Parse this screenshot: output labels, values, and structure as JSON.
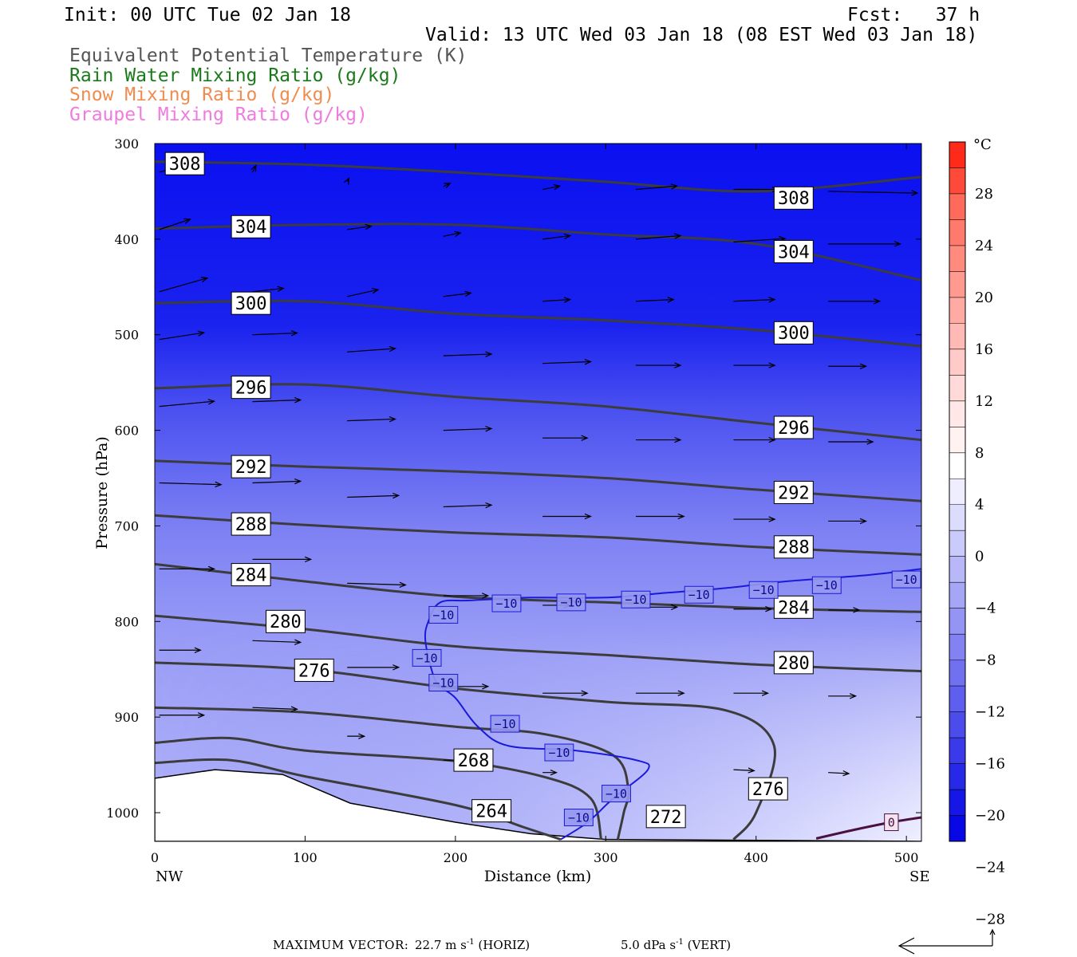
{
  "header": {
    "init": "Init: 00 UTC Tue 02 Jan 18",
    "fcst": "Fcst:   37 h",
    "valid": "Valid: 13 UTC Wed 03 Jan 18 (08 EST Wed 03 Jan 18)"
  },
  "legend_titles": [
    {
      "text": "Equivalent Potential Temperature (K)",
      "color": "#555555"
    },
    {
      "text": "Rain Water Mixing Ratio (g/kg)",
      "color": "#1a7a1a"
    },
    {
      "text": "Snow Mixing Ratio (g/kg)",
      "color": "#f08c50"
    },
    {
      "text": "Graupel Mixing Ratio (g/kg)",
      "color": "#f07ae0"
    }
  ],
  "footer": {
    "max_vector_label": "MAXIMUM VECTOR:",
    "horiz": "22.7 m s",
    "horiz_unit": "(HORIZ)",
    "vert": "5.0 dPa s",
    "vert_unit": "(VERT)",
    "exponent": "-1"
  },
  "chart_data": {
    "type": "cross-section",
    "xlabel": "Distance (km)",
    "ylabel": "Pressure (hPa)",
    "xlim": [
      0,
      510
    ],
    "ylim": [
      300,
      1030
    ],
    "x_ticks": [
      0,
      100,
      200,
      300,
      400,
      500
    ],
    "y_ticks": [
      300,
      400,
      500,
      600,
      700,
      800,
      900,
      1000
    ],
    "x_end_labels": {
      "left": "NW",
      "right": "SE"
    },
    "colorbar": {
      "unit": "°C",
      "tick_labels": [
        "28",
        "24",
        "20",
        "16",
        "12",
        "8",
        "4",
        "0",
        "−4",
        "−8",
        "−12",
        "−16",
        "−20",
        "−24",
        "−28"
      ],
      "colors_top_to_bottom": [
        "#ff2a1a",
        "#ff4a3a",
        "#ff6a5a",
        "#ff7a6c",
        "#ff8a7e",
        "#ff9a90",
        "#ffaaa3",
        "#ffbab5",
        "#ffcac7",
        "#ffdad8",
        "#ffe8e7",
        "#fff2f1",
        "#ffffff",
        "#eeeeff",
        "#dcdcfd",
        "#cacafb",
        "#b8b8f9",
        "#a6a6f7",
        "#9494f5",
        "#8282f3",
        "#7070f1",
        "#5e5eef",
        "#4c4ced",
        "#3a3aeb",
        "#2828e9",
        "#1616e7",
        "#0808e5"
      ],
      "bg_top_color": "#0a10f0",
      "bg_mid_color": "#7d80f4",
      "bg_low_color": "#c8c9fb"
    },
    "theta_e_contours": [
      {
        "value": 308,
        "points": [
          [
            0,
            319
          ],
          [
            100,
            322
          ],
          [
            200,
            330
          ],
          [
            300,
            340
          ],
          [
            400,
            350
          ],
          [
            510,
            335
          ]
        ]
      },
      {
        "value": 304,
        "points": [
          [
            0,
            389
          ],
          [
            100,
            385
          ],
          [
            200,
            385
          ],
          [
            300,
            395
          ],
          [
            400,
            405
          ],
          [
            510,
            443
          ]
        ]
      },
      {
        "value": 300,
        "points": [
          [
            0,
            467
          ],
          [
            100,
            465
          ],
          [
            200,
            478
          ],
          [
            300,
            485
          ],
          [
            400,
            495
          ],
          [
            510,
            512
          ]
        ]
      },
      {
        "value": 296,
        "points": [
          [
            0,
            556
          ],
          [
            100,
            552
          ],
          [
            200,
            565
          ],
          [
            300,
            575
          ],
          [
            400,
            592
          ],
          [
            510,
            610
          ]
        ]
      },
      {
        "value": 292,
        "points": [
          [
            0,
            632
          ],
          [
            100,
            638
          ],
          [
            200,
            643
          ],
          [
            300,
            650
          ],
          [
            400,
            662
          ],
          [
            510,
            674
          ]
        ]
      },
      {
        "value": 288,
        "points": [
          [
            0,
            689
          ],
          [
            100,
            699
          ],
          [
            200,
            707
          ],
          [
            300,
            712
          ],
          [
            400,
            722
          ],
          [
            510,
            730
          ]
        ]
      },
      {
        "value": 284,
        "points": [
          [
            0,
            740
          ],
          [
            100,
            758
          ],
          [
            200,
            774
          ],
          [
            300,
            780
          ],
          [
            400,
            786
          ],
          [
            510,
            790
          ]
        ]
      },
      {
        "value": 280,
        "points": [
          [
            0,
            794
          ],
          [
            100,
            808
          ],
          [
            200,
            826
          ],
          [
            300,
            835
          ],
          [
            400,
            845
          ],
          [
            510,
            852
          ]
        ]
      },
      {
        "value": 276,
        "points": [
          [
            0,
            843
          ],
          [
            100,
            850
          ],
          [
            200,
            870
          ],
          [
            300,
            884
          ],
          [
            380,
            893
          ],
          [
            412,
            930
          ],
          [
            400,
            1000
          ],
          [
            385,
            1028
          ]
        ]
      },
      {
        "value": 272,
        "points": [
          [
            0,
            890
          ],
          [
            100,
            895
          ],
          [
            200,
            910
          ],
          [
            260,
            918
          ],
          [
            305,
            940
          ],
          [
            315,
            975
          ],
          [
            312,
            1000
          ],
          [
            308,
            1028
          ]
        ]
      },
      {
        "value": 268,
        "points": [
          [
            0,
            927
          ],
          [
            50,
            922
          ],
          [
            100,
            935
          ],
          [
            200,
            946
          ],
          [
            260,
            963
          ],
          [
            290,
            985
          ],
          [
            297,
            1028
          ]
        ]
      },
      {
        "value": 264,
        "points": [
          [
            0,
            948
          ],
          [
            50,
            945
          ],
          [
            100,
            962
          ],
          [
            200,
            992
          ],
          [
            245,
            1015
          ],
          [
            270,
            1028
          ]
        ]
      }
    ],
    "theta_e_labels": [
      {
        "value": 308,
        "x": 20,
        "p": 321
      },
      {
        "value": 308,
        "x": 425,
        "p": 357
      },
      {
        "value": 304,
        "x": 64,
        "p": 387
      },
      {
        "value": 304,
        "x": 425,
        "p": 413
      },
      {
        "value": 300,
        "x": 64,
        "p": 467
      },
      {
        "value": 300,
        "x": 425,
        "p": 498
      },
      {
        "value": 296,
        "x": 64,
        "p": 555
      },
      {
        "value": 296,
        "x": 425,
        "p": 597
      },
      {
        "value": 292,
        "x": 64,
        "p": 638
      },
      {
        "value": 292,
        "x": 425,
        "p": 665
      },
      {
        "value": 288,
        "x": 64,
        "p": 698
      },
      {
        "value": 288,
        "x": 425,
        "p": 722
      },
      {
        "value": 284,
        "x": 64,
        "p": 751
      },
      {
        "value": 284,
        "x": 425,
        "p": 785
      },
      {
        "value": 280,
        "x": 87,
        "p": 800
      },
      {
        "value": 280,
        "x": 425,
        "p": 843
      },
      {
        "value": 276,
        "x": 106,
        "p": 851
      },
      {
        "value": 276,
        "x": 408,
        "p": 975
      },
      {
        "value": 272,
        "x": 340,
        "p": 1004
      },
      {
        "value": 268,
        "x": 212,
        "p": 945
      },
      {
        "value": 264,
        "x": 224,
        "p": 998
      }
    ],
    "temp_isotherm_minus10": {
      "value": "-10",
      "points": [
        [
          270,
          1028
        ],
        [
          288,
          1010
        ],
        [
          305,
          985
        ],
        [
          328,
          955
        ],
        [
          320,
          945
        ],
        [
          280,
          935
        ],
        [
          235,
          930
        ],
        [
          215,
          910
        ],
        [
          200,
          880
        ],
        [
          190,
          868
        ],
        [
          185,
          855
        ],
        [
          180,
          820
        ],
        [
          182,
          800
        ],
        [
          190,
          780
        ],
        [
          210,
          778
        ],
        [
          250,
          775
        ],
        [
          300,
          775
        ],
        [
          340,
          770
        ],
        [
          380,
          765
        ],
        [
          420,
          758
        ],
        [
          470,
          752
        ],
        [
          510,
          745
        ]
      ]
    },
    "temp_labels_minus10": [
      {
        "x": 192,
        "p": 793
      },
      {
        "x": 234,
        "p": 781
      },
      {
        "x": 277,
        "p": 780
      },
      {
        "x": 320,
        "p": 777
      },
      {
        "x": 362,
        "p": 772
      },
      {
        "x": 405,
        "p": 767
      },
      {
        "x": 447,
        "p": 762
      },
      {
        "x": 500,
        "p": 756
      },
      {
        "x": 181,
        "p": 838
      },
      {
        "x": 192,
        "p": 864
      },
      {
        "x": 233,
        "p": 907
      },
      {
        "x": 269,
        "p": 937
      },
      {
        "x": 307,
        "p": 980
      },
      {
        "x": 282,
        "p": 1005
      }
    ],
    "temp_isotherm_zero": {
      "value": "0",
      "points": [
        [
          440,
          1027
        ],
        [
          465,
          1018
        ],
        [
          490,
          1010
        ],
        [
          510,
          1005
        ]
      ],
      "label": {
        "x": 490,
        "p": 1010
      }
    },
    "terrain": [
      [
        0,
        964
      ],
      [
        40,
        955
      ],
      [
        85,
        960
      ],
      [
        130,
        990
      ],
      [
        200,
        1010
      ],
      [
        250,
        1022
      ],
      [
        300,
        1028
      ],
      [
        510,
        1030
      ]
    ],
    "wind_vectors": [
      {
        "x": 3,
        "p": 330,
        "u": 10,
        "w": 3
      },
      {
        "x": 65,
        "p": 330,
        "u": 1,
        "w": 2
      },
      {
        "x": 128,
        "p": 340,
        "u": 0.5,
        "w": 1
      },
      {
        "x": 192,
        "p": 345,
        "u": 2,
        "w": 1
      },
      {
        "x": 258,
        "p": 348,
        "u": 5,
        "w": 1
      },
      {
        "x": 320,
        "p": 348,
        "u": 12,
        "w": 1
      },
      {
        "x": 385,
        "p": 348,
        "u": 13,
        "w": 0
      },
      {
        "x": 448,
        "p": 350,
        "u": 26,
        "w": -0.5
      },
      {
        "x": 3,
        "p": 390,
        "u": 9,
        "w": 3
      },
      {
        "x": 128,
        "p": 390,
        "u": 7,
        "w": 1
      },
      {
        "x": 192,
        "p": 397,
        "u": 5,
        "w": 1
      },
      {
        "x": 258,
        "p": 400,
        "u": 8,
        "w": 1
      },
      {
        "x": 320,
        "p": 400,
        "u": 13,
        "w": 1
      },
      {
        "x": 385,
        "p": 403,
        "u": 15,
        "w": 1
      },
      {
        "x": 448,
        "p": 405,
        "u": 21,
        "w": 0
      },
      {
        "x": 3,
        "p": 455,
        "u": 14,
        "w": 4
      },
      {
        "x": 65,
        "p": 455,
        "u": 9,
        "w": 1
      },
      {
        "x": 128,
        "p": 460,
        "u": 9,
        "w": 2
      },
      {
        "x": 192,
        "p": 460,
        "u": 8,
        "w": 1
      },
      {
        "x": 258,
        "p": 465,
        "u": 8,
        "w": 0.5
      },
      {
        "x": 320,
        "p": 465,
        "u": 11,
        "w": 0.5
      },
      {
        "x": 385,
        "p": 465,
        "u": 12,
        "w": 0.5
      },
      {
        "x": 448,
        "p": 465,
        "u": 15,
        "w": 0
      },
      {
        "x": 3,
        "p": 505,
        "u": 13,
        "w": 2
      },
      {
        "x": 65,
        "p": 500,
        "u": 13,
        "w": 0.5
      },
      {
        "x": 128,
        "p": 518,
        "u": 14,
        "w": 1
      },
      {
        "x": 192,
        "p": 522,
        "u": 14,
        "w": 0.5
      },
      {
        "x": 258,
        "p": 530,
        "u": 14,
        "w": 0.5
      },
      {
        "x": 320,
        "p": 532,
        "u": 13,
        "w": 0
      },
      {
        "x": 385,
        "p": 532,
        "u": 12,
        "w": 0
      },
      {
        "x": 448,
        "p": 533,
        "u": 11,
        "w": 0
      },
      {
        "x": 3,
        "p": 575,
        "u": 16,
        "w": 1.5
      },
      {
        "x": 65,
        "p": 570,
        "u": 14,
        "w": 0.5
      },
      {
        "x": 128,
        "p": 590,
        "u": 14,
        "w": 0.5
      },
      {
        "x": 192,
        "p": 600,
        "u": 14,
        "w": 0.5
      },
      {
        "x": 258,
        "p": 608,
        "u": 13,
        "w": 0
      },
      {
        "x": 320,
        "p": 610,
        "u": 13,
        "w": 0
      },
      {
        "x": 385,
        "p": 610,
        "u": 12,
        "w": 0
      },
      {
        "x": 448,
        "p": 612,
        "u": 13,
        "w": 0
      },
      {
        "x": 3,
        "p": 655,
        "u": 18,
        "w": -0.5
      },
      {
        "x": 65,
        "p": 655,
        "u": 14,
        "w": 0.5
      },
      {
        "x": 128,
        "p": 670,
        "u": 15,
        "w": 0.5
      },
      {
        "x": 192,
        "p": 680,
        "u": 14,
        "w": 0.5
      },
      {
        "x": 258,
        "p": 690,
        "u": 14,
        "w": 0
      },
      {
        "x": 320,
        "p": 690,
        "u": 14,
        "w": 0
      },
      {
        "x": 385,
        "p": 693,
        "u": 12,
        "w": 0
      },
      {
        "x": 448,
        "p": 695,
        "u": 11,
        "w": 0
      },
      {
        "x": 3,
        "p": 745,
        "u": 16,
        "w": 0
      },
      {
        "x": 65,
        "p": 735,
        "u": 17,
        "w": 0
      },
      {
        "x": 128,
        "p": 760,
        "u": 17,
        "w": -0.5
      },
      {
        "x": 192,
        "p": 773,
        "u": 13,
        "w": 0
      },
      {
        "x": 258,
        "p": 783,
        "u": 8,
        "w": 0
      },
      {
        "x": 320,
        "p": 785,
        "u": 12,
        "w": 0
      },
      {
        "x": 385,
        "p": 787,
        "u": 11,
        "w": 0
      },
      {
        "x": 448,
        "p": 788,
        "u": 9,
        "w": 0
      },
      {
        "x": 3,
        "p": 830,
        "u": 12,
        "w": 0
      },
      {
        "x": 65,
        "p": 820,
        "u": 14,
        "w": -0.5
      },
      {
        "x": 128,
        "p": 848,
        "u": 15,
        "w": 0
      },
      {
        "x": 192,
        "p": 868,
        "u": 13,
        "w": 0
      },
      {
        "x": 258,
        "p": 875,
        "u": 13,
        "w": 0
      },
      {
        "x": 320,
        "p": 875,
        "u": 14,
        "w": 0
      },
      {
        "x": 385,
        "p": 875,
        "u": 10,
        "w": 0
      },
      {
        "x": 448,
        "p": 878,
        "u": 8,
        "w": 0
      },
      {
        "x": 3,
        "p": 898,
        "u": 13,
        "w": 0
      },
      {
        "x": 65,
        "p": 890,
        "u": 13,
        "w": -0.5
      },
      {
        "x": 128,
        "p": 920,
        "u": 5,
        "w": 0
      },
      {
        "x": 192,
        "p": 945,
        "u": 5,
        "w": 0
      },
      {
        "x": 258,
        "p": 958,
        "u": 4,
        "w": 0
      },
      {
        "x": 385,
        "p": 955,
        "u": 6,
        "w": -0.3
      },
      {
        "x": 448,
        "p": 958,
        "u": 6,
        "w": -0.3
      }
    ]
  }
}
